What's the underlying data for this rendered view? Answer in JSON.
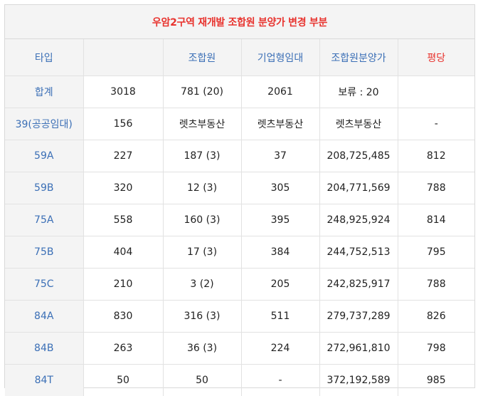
{
  "title": "우암2구역 재개발 조합원 분양가 변경 부분",
  "headers": [
    "타입",
    "",
    "조합원",
    "기업형임대",
    "조합원분양가",
    "평당"
  ],
  "rows": [
    [
      "합계",
      "3018",
      "781 (20)",
      "2061",
      "보류 : 20",
      ""
    ],
    [
      "39(공공임대)",
      "156",
      "렛츠부동산",
      "렛츠부동산",
      "렛츠부동산",
      "-"
    ],
    [
      "59A",
      "227",
      "187 (3)",
      "37",
      "208,725,485",
      "812"
    ],
    [
      "59B",
      "320",
      "12 (3)",
      "305",
      "204,771,569",
      "788"
    ],
    [
      "75A",
      "558",
      "160 (3)",
      "395",
      "248,925,924",
      "814"
    ],
    [
      "75B",
      "404",
      "17 (3)",
      "384",
      "244,752,513",
      "795"
    ],
    [
      "75C",
      "210",
      "3 (2)",
      "205",
      "242,825,917",
      "788"
    ],
    [
      "84A",
      "830",
      "316 (3)",
      "511",
      "279,737,289",
      "826"
    ],
    [
      "84B",
      "263",
      "36 (3)",
      "224",
      "272,961,810",
      "798"
    ],
    [
      "84T",
      "50",
      "50",
      "-",
      "372,192,589",
      "985"
    ]
  ]
}
